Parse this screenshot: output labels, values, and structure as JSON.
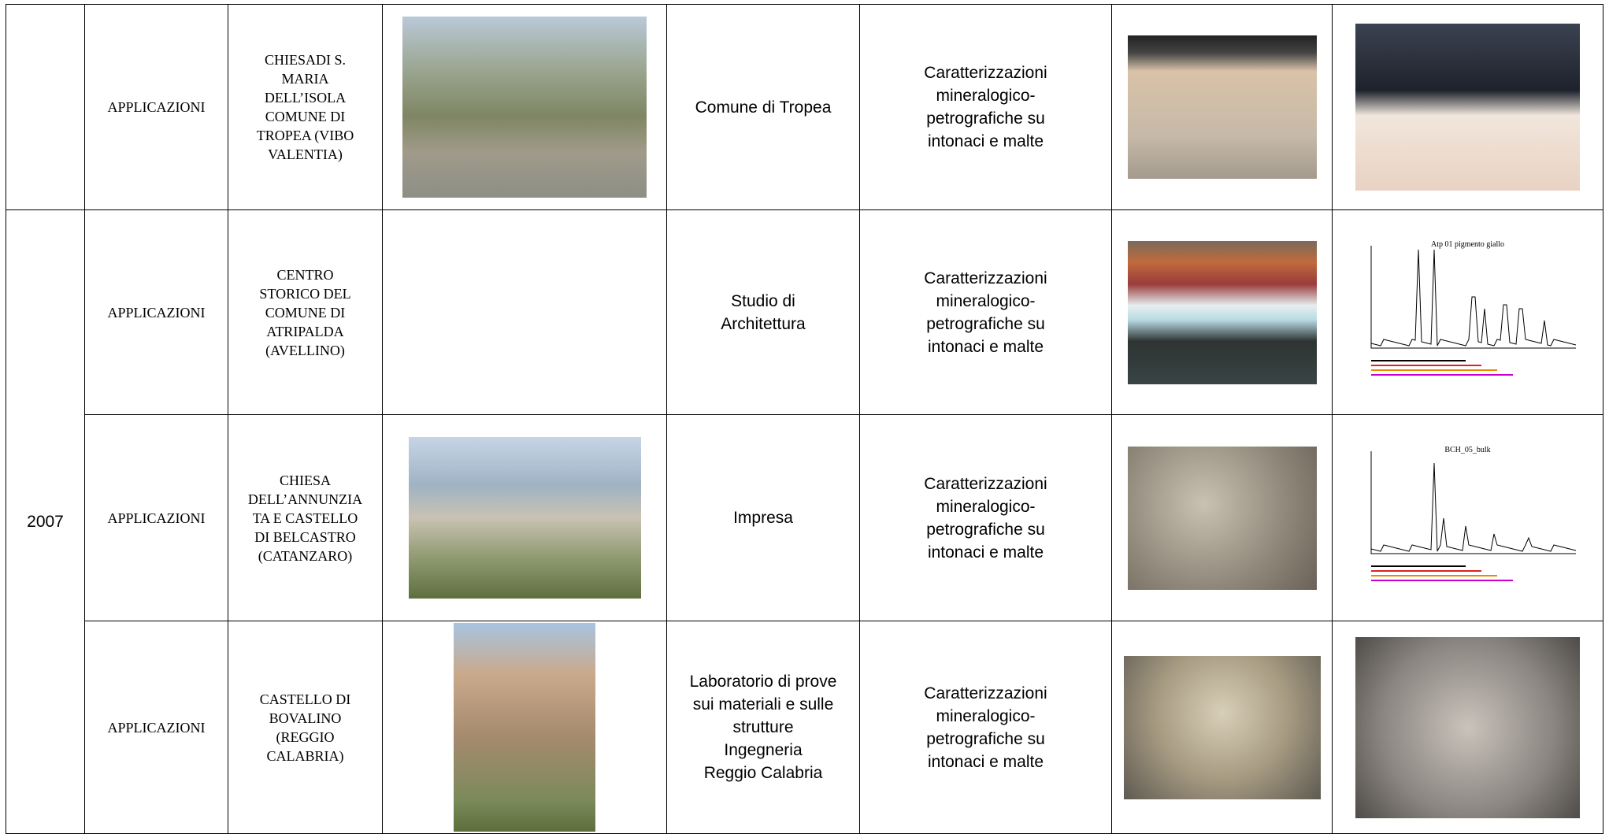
{
  "table": {
    "rows": [
      {
        "category": "APPLICAZIONI",
        "site": [
          "CHIESADI S.",
          "MARIA",
          "DELL’ISOLA",
          "COMUNE DI",
          "TROPEA (VIBO",
          "VALENTIA)"
        ],
        "client": [
          "Comune di Tropea"
        ],
        "analysis": [
          "Caratterizzazioni",
          "mineralogico-",
          "petrografiche su",
          "intonaci e malte"
        ]
      },
      {
        "year": "2007",
        "category": "APPLICAZIONI",
        "site": [
          "CENTRO",
          "STORICO DEL",
          "COMUNE DI",
          "ATRIPALDA",
          "(AVELLINO)"
        ],
        "client": [
          "Studio di",
          "Architettura"
        ],
        "analysis": [
          "Caratterizzazioni",
          "mineralogico-",
          "petrografiche su",
          "intonaci e malte"
        ],
        "chart_caption": "Atp 01 pigmento giallo"
      },
      {
        "category": "APPLICAZIONI",
        "site": [
          "CHIESA",
          "DELL’ANNUNZIA",
          "TA E CASTELLO",
          "DI BELCASTRO",
          "(CATANZARO)"
        ],
        "client": [
          "Impresa"
        ],
        "analysis": [
          "Caratterizzazioni",
          "mineralogico-",
          "petrografiche su",
          "intonaci e malte"
        ],
        "chart_caption": "BCH_05_bulk"
      },
      {
        "category": "APPLICAZIONI",
        "site": [
          "CASTELLO DI",
          "BOVALINO",
          "(REGGIO",
          "CALABRIA)"
        ],
        "client": [
          "Laboratorio di prove",
          "sui materiali e sulle",
          "strutture",
          "Ingegneria",
          "Reggio Calabria"
        ],
        "analysis": [
          "Caratterizzazioni",
          "mineralogico-",
          "petrografiche su",
          "intonaci e malte"
        ]
      }
    ]
  }
}
